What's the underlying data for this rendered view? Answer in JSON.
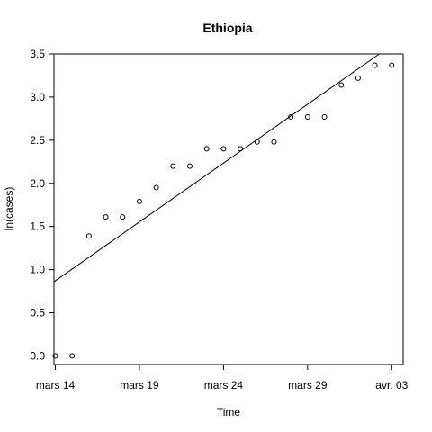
{
  "chart_data": {
    "type": "scatter",
    "title": "Ethiopia",
    "xlabel": "Time",
    "ylabel": "ln(cases)",
    "x_dates": [
      "mars 14",
      "mars 15",
      "mars 16",
      "mars 17",
      "mars 18",
      "mars 19",
      "mars 20",
      "mars 21",
      "mars 22",
      "mars 23",
      "mars 24",
      "mars 25",
      "mars 26",
      "mars 27",
      "mars 28",
      "mars 29",
      "mars 30",
      "mars 31",
      "avr. 01",
      "avr. 02",
      "avr. 03"
    ],
    "y": [
      0.0,
      0.0,
      1.39,
      1.61,
      1.61,
      1.79,
      1.95,
      2.2,
      2.2,
      2.4,
      2.4,
      2.4,
      2.48,
      2.48,
      2.77,
      2.77,
      2.77,
      3.14,
      3.22,
      3.37,
      3.37
    ],
    "fit_line": {
      "type": "linear",
      "y_at_first_date": 0.87,
      "slope_per_day": 0.1365
    },
    "x_ticks": [
      "mars 14",
      "mars 19",
      "mars 24",
      "mars 29",
      "avr. 03"
    ],
    "y_ticks": [
      "0.0",
      "0.5",
      "1.0",
      "1.5",
      "2.0",
      "2.5",
      "3.0",
      "3.5"
    ],
    "ylim": [
      -0.1,
      3.5
    ],
    "grid": false,
    "legend": "none"
  }
}
